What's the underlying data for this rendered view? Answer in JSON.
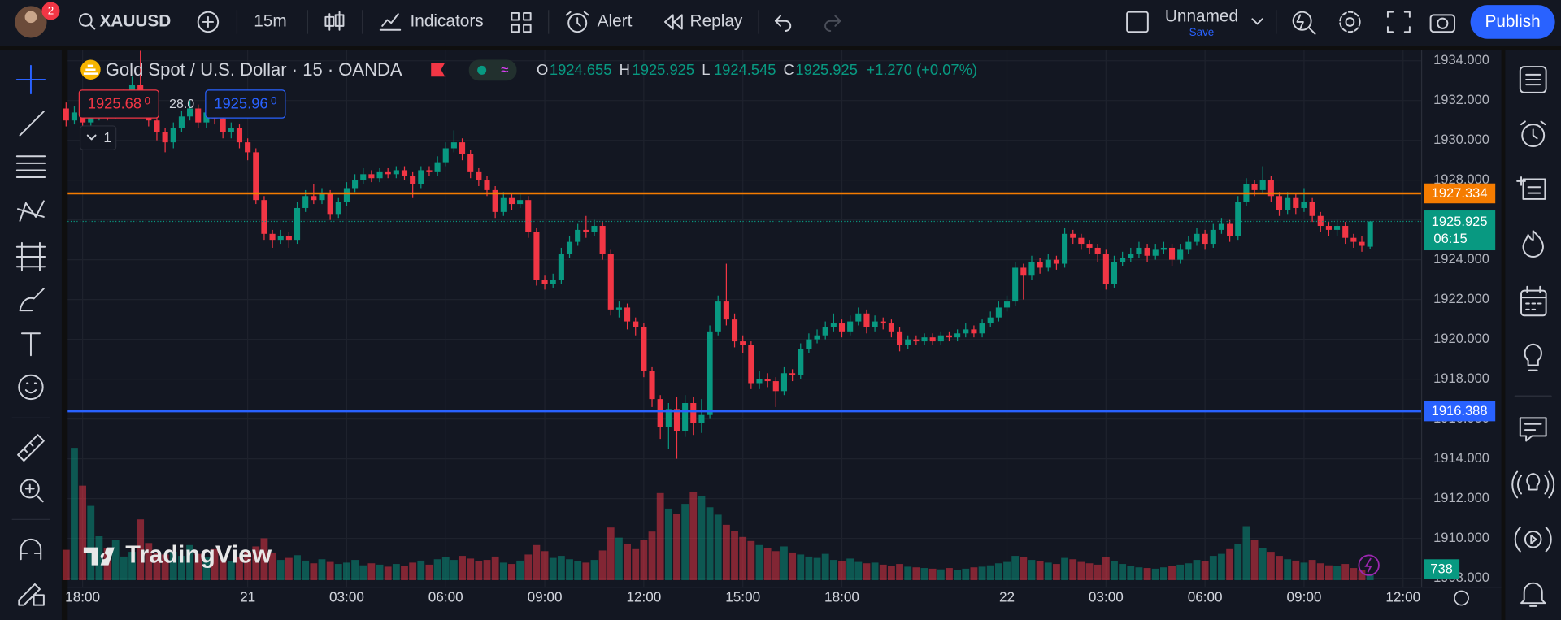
{
  "toolbar": {
    "badge": "2",
    "symbol": "XAUUSD",
    "interval": "15m",
    "indicators": "Indicators",
    "alert": "Alert",
    "replay": "Replay",
    "layout_name": "Unnamed",
    "save": "Save",
    "publish": "Publish"
  },
  "legend": {
    "title": "Gold Spot / U.S. Dollar · 15 · OANDA",
    "open_label": "O",
    "high_label": "H",
    "low_label": "L",
    "close_label": "C",
    "change": "+1.270 (+0.07%)",
    "sell": "1925.68",
    "sell_pip": "0",
    "spread": "28.0",
    "buy": "1925.96",
    "buy_pip": "0",
    "indicator_count": "1"
  },
  "watermark": "TradingView",
  "chart_data": {
    "type": "candlestick",
    "categories": [
      null,
      null,
      "18:00",
      null,
      null,
      null,
      null,
      null,
      null,
      null,
      null,
      null,
      null,
      null,
      null,
      null,
      null,
      null,
      null,
      null,
      null,
      null,
      "21",
      null,
      null,
      null,
      null,
      null,
      null,
      null,
      null,
      null,
      null,
      null,
      "03:00",
      null,
      null,
      null,
      null,
      null,
      null,
      null,
      null,
      null,
      null,
      null,
      "06:00",
      null,
      null,
      null,
      null,
      null,
      null,
      null,
      null,
      null,
      null,
      null,
      "09:00",
      null,
      null,
      null,
      null,
      null,
      null,
      null,
      null,
      null,
      null,
      null,
      "12:00",
      null,
      null,
      null,
      null,
      null,
      null,
      null,
      null,
      null,
      null,
      null,
      "15:00",
      null,
      null,
      null,
      null,
      null,
      null,
      null,
      null,
      null,
      null,
      null,
      "18:00",
      null,
      null,
      null,
      null,
      null,
      null,
      null,
      null,
      null,
      null,
      null,
      null,
      null,
      null,
      null,
      null,
      null,
      null,
      null,
      "22",
      null,
      null,
      null,
      null,
      null,
      null,
      null,
      null,
      null,
      null,
      null,
      "03:00",
      null,
      null,
      null,
      null,
      null,
      null,
      null,
      null,
      null,
      null,
      null,
      "06:00",
      null,
      null,
      null,
      null,
      null,
      null,
      null,
      null,
      null,
      null,
      null,
      "09:00",
      null,
      null,
      null,
      null,
      null,
      null,
      null,
      null,
      null,
      null,
      null,
      "12:00",
      null
    ],
    "open": [
      1931.6,
      1931.0,
      1931.4,
      1930.9,
      1931.2,
      1931.6,
      1931.3,
      1931.8,
      1932.2,
      1932.8,
      1932.0,
      1931.0,
      1930.4,
      1929.9,
      1930.6,
      1931.2,
      1931.6,
      1930.9,
      1931.4,
      1931.1,
      1930.4,
      1930.6,
      1929.9,
      1929.4,
      1927.0,
      1925.3,
      1925.0,
      1925.2,
      1925.0,
      1926.6,
      1927.2,
      1927.0,
      1927.3,
      1926.3,
      1926.9,
      1927.6,
      1928.0,
      1928.3,
      1928.1,
      1928.4,
      1928.3,
      1928.5,
      1928.2,
      1927.8,
      1928.5,
      1928.4,
      1928.9,
      1929.6,
      1929.9,
      1929.3,
      1928.4,
      1928.0,
      1927.5,
      1926.4,
      1927.1,
      1926.8,
      1927.0,
      1925.4,
      1923.0,
      1922.8,
      1923.0,
      1924.3,
      1924.9,
      1925.5,
      1925.4,
      1925.7,
      1924.3,
      1921.5,
      1921.6,
      1920.9,
      1920.6,
      1918.4,
      1917.0,
      1915.6,
      1916.5,
      1915.4,
      1916.8,
      1915.8,
      1916.2,
      1920.4,
      1921.9,
      1921.0,
      1919.9,
      1919.7,
      1917.8,
      1918.0,
      1917.9,
      1917.4,
      1918.3,
      1918.2,
      1919.5,
      1920.0,
      1920.2,
      1920.6,
      1920.8,
      1920.4,
      1920.9,
      1921.3,
      1920.6,
      1920.9,
      1920.8,
      1920.4,
      1919.7,
      1920.0,
      1919.9,
      1920.1,
      1919.9,
      1920.2,
      1920.1,
      1920.3,
      1920.5,
      1920.3,
      1920.8,
      1921.1,
      1921.6,
      1921.9,
      1923.6,
      1923.2,
      1923.9,
      1923.6,
      1924.0,
      1923.8,
      1925.3,
      1925.1,
      1924.8,
      1924.6,
      1924.3,
      1922.8,
      1923.9,
      1924.1,
      1924.3,
      1924.6,
      1924.2,
      1924.5,
      1924.6,
      1924.0,
      1924.5,
      1924.9,
      1925.3,
      1924.8,
      1925.5,
      1925.8,
      1925.2,
      1926.9,
      1927.8,
      1927.5,
      1928.0,
      1927.2,
      1926.5,
      1927.1,
      1926.6,
      1926.9,
      1926.2,
      1925.7,
      1925.5,
      1925.7,
      1925.1,
      1924.9,
      1924.655,
      null,
      null,
      null,
      null,
      null
    ],
    "high": [
      1931.9,
      1931.7,
      1931.6,
      1931.5,
      1931.9,
      1931.8,
      1932.1,
      1932.6,
      1933.2,
      1934.5,
      1932.2,
      1931.2,
      1930.6,
      1930.9,
      1931.5,
      1932.0,
      1931.8,
      1931.7,
      1931.7,
      1931.3,
      1930.9,
      1930.8,
      1930.1,
      1929.6,
      1927.2,
      1925.5,
      1925.5,
      1925.4,
      1926.9,
      1927.5,
      1927.8,
      1927.6,
      1927.5,
      1927.1,
      1927.9,
      1928.3,
      1928.6,
      1928.5,
      1928.6,
      1928.6,
      1928.7,
      1928.7,
      1928.4,
      1928.7,
      1928.7,
      1929.2,
      1929.9,
      1930.5,
      1930.1,
      1929.5,
      1928.6,
      1928.2,
      1927.7,
      1927.4,
      1927.3,
      1927.3,
      1927.2,
      1925.6,
      1923.2,
      1923.3,
      1924.6,
      1925.2,
      1925.8,
      1926.2,
      1926.0,
      1925.9,
      1924.5,
      1921.9,
      1921.8,
      1921.1,
      1920.8,
      1918.6,
      1917.2,
      1916.8,
      1917.1,
      1917.2,
      1917.1,
      1917.0,
      1920.7,
      1922.2,
      1923.8,
      1921.3,
      1920.2,
      1919.9,
      1918.4,
      1918.3,
      1918.1,
      1918.6,
      1918.5,
      1919.8,
      1920.3,
      1920.5,
      1920.9,
      1921.3,
      1921.0,
      1921.2,
      1921.6,
      1921.5,
      1921.2,
      1921.1,
      1921.0,
      1920.6,
      1920.2,
      1920.2,
      1920.3,
      1920.3,
      1920.4,
      1920.4,
      1920.5,
      1920.8,
      1920.7,
      1921.0,
      1921.4,
      1921.9,
      1922.2,
      1923.9,
      1923.8,
      1924.2,
      1924.1,
      1924.3,
      1924.2,
      1925.6,
      1925.5,
      1925.3,
      1925.0,
      1924.8,
      1924.5,
      1924.2,
      1924.4,
      1924.6,
      1924.9,
      1924.8,
      1924.8,
      1924.9,
      1924.8,
      1924.8,
      1925.2,
      1925.6,
      1925.5,
      1925.8,
      1926.1,
      1926.0,
      1927.2,
      1928.1,
      1928.0,
      1928.7,
      1928.2,
      1927.4,
      1927.4,
      1927.3,
      1927.6,
      1927.1,
      1926.4,
      1925.9,
      1926.0,
      1925.9,
      1925.3,
      1925.2,
      1925.925,
      null,
      null,
      null,
      null,
      null
    ],
    "low": [
      1930.7,
      1930.8,
      1930.6,
      1930.7,
      1931.0,
      1931.0,
      1931.1,
      1931.6,
      1932.0,
      1931.8,
      1930.7,
      1930.0,
      1929.4,
      1929.6,
      1930.4,
      1931.0,
      1930.6,
      1930.6,
      1930.8,
      1930.1,
      1930.1,
      1929.6,
      1929.0,
      1926.8,
      1925.0,
      1924.6,
      1924.8,
      1924.6,
      1924.8,
      1926.4,
      1926.8,
      1926.8,
      1926.0,
      1926.1,
      1926.7,
      1927.4,
      1927.8,
      1927.9,
      1927.9,
      1928.1,
      1928.1,
      1928.0,
      1927.1,
      1927.6,
      1928.2,
      1928.2,
      1928.7,
      1929.4,
      1929.0,
      1928.1,
      1927.7,
      1927.2,
      1926.1,
      1926.2,
      1926.5,
      1926.6,
      1925.1,
      1922.7,
      1922.5,
      1922.6,
      1922.8,
      1924.1,
      1924.7,
      1925.1,
      1925.2,
      1924.0,
      1921.2,
      1921.1,
      1920.5,
      1920.2,
      1918.1,
      1916.6,
      1915.0,
      1914.5,
      1914.0,
      1915.1,
      1915.2,
      1915.3,
      1916.0,
      1920.2,
      1920.7,
      1919.6,
      1919.3,
      1917.5,
      1917.5,
      1917.6,
      1916.6,
      1917.2,
      1917.9,
      1918.0,
      1919.3,
      1919.8,
      1920.0,
      1920.4,
      1920.1,
      1920.2,
      1920.7,
      1920.3,
      1920.4,
      1920.5,
      1920.1,
      1919.4,
      1919.5,
      1919.7,
      1919.7,
      1919.7,
      1919.7,
      1919.9,
      1919.9,
      1920.1,
      1920.1,
      1920.1,
      1920.6,
      1920.9,
      1921.4,
      1921.7,
      1922.0,
      1923.0,
      1923.3,
      1923.4,
      1923.5,
      1923.6,
      1924.8,
      1924.5,
      1924.3,
      1923.9,
      1922.5,
      1922.6,
      1923.7,
      1923.9,
      1924.1,
      1923.9,
      1924.0,
      1924.3,
      1923.7,
      1923.8,
      1924.3,
      1924.7,
      1924.5,
      1924.6,
      1925.3,
      1924.9,
      1925.0,
      1926.7,
      1927.2,
      1927.3,
      1926.9,
      1926.2,
      1926.3,
      1926.3,
      1926.4,
      1925.9,
      1925.4,
      1925.2,
      1925.2,
      1924.8,
      1924.6,
      1924.4,
      1924.545,
      null,
      null,
      null,
      null,
      null
    ],
    "close": [
      1931.0,
      1931.4,
      1930.9,
      1931.2,
      1931.6,
      1931.3,
      1931.8,
      1932.2,
      1932.8,
      1932.0,
      1931.0,
      1930.4,
      1929.9,
      1930.6,
      1931.2,
      1931.6,
      1930.9,
      1931.4,
      1931.1,
      1930.4,
      1930.6,
      1929.9,
      1929.4,
      1927.0,
      1925.3,
      1925.0,
      1925.2,
      1925.0,
      1926.6,
      1927.2,
      1927.0,
      1927.3,
      1926.3,
      1926.9,
      1927.6,
      1928.0,
      1928.3,
      1928.1,
      1928.4,
      1928.3,
      1928.5,
      1928.2,
      1927.8,
      1928.5,
      1928.4,
      1928.9,
      1929.6,
      1929.9,
      1929.3,
      1928.4,
      1928.0,
      1927.5,
      1926.4,
      1927.1,
      1926.8,
      1927.0,
      1925.4,
      1923.0,
      1922.8,
      1923.0,
      1924.3,
      1924.9,
      1925.5,
      1925.4,
      1925.7,
      1924.3,
      1921.5,
      1921.6,
      1920.9,
      1920.6,
      1918.4,
      1917.0,
      1915.6,
      1916.5,
      1915.4,
      1916.8,
      1915.8,
      1916.2,
      1920.4,
      1921.9,
      1921.0,
      1919.9,
      1919.7,
      1917.8,
      1918.0,
      1917.9,
      1917.4,
      1918.3,
      1918.2,
      1919.5,
      1920.0,
      1920.2,
      1920.6,
      1920.8,
      1920.4,
      1920.9,
      1921.3,
      1920.6,
      1920.9,
      1920.8,
      1920.4,
      1919.7,
      1920.0,
      1919.9,
      1920.1,
      1919.9,
      1920.2,
      1920.1,
      1920.3,
      1920.5,
      1920.3,
      1920.8,
      1921.1,
      1921.6,
      1921.9,
      1923.6,
      1923.2,
      1923.9,
      1923.6,
      1924.0,
      1923.8,
      1925.3,
      1925.1,
      1924.8,
      1924.6,
      1924.3,
      1922.8,
      1923.9,
      1924.1,
      1924.3,
      1924.6,
      1924.2,
      1924.5,
      1924.6,
      1924.0,
      1924.5,
      1924.9,
      1925.3,
      1924.8,
      1925.5,
      1925.8,
      1925.2,
      1926.9,
      1927.8,
      1927.5,
      1928.0,
      1927.2,
      1926.5,
      1927.1,
      1926.6,
      1926.9,
      1926.2,
      1925.7,
      1925.5,
      1925.7,
      1925.1,
      1924.9,
      1924.7,
      1925.925,
      null,
      null,
      null,
      null,
      null
    ],
    "volume": [
      4500,
      19600,
      14000,
      11000,
      6500,
      4800,
      6000,
      3500,
      4200,
      9000,
      5500,
      4000,
      3800,
      4200,
      3600,
      5200,
      3900,
      3400,
      4600,
      3100,
      2800,
      3500,
      4200,
      5000,
      6200,
      4100,
      3000,
      3300,
      3700,
      2900,
      2500,
      3100,
      2700,
      2400,
      2600,
      3000,
      2200,
      2500,
      2300,
      2000,
      2400,
      2100,
      2600,
      2900,
      2300,
      3100,
      3400,
      3000,
      3600,
      3200,
      2800,
      3000,
      3500,
      2600,
      2400,
      2900,
      3800,
      5200,
      4300,
      3300,
      3600,
      3100,
      2800,
      2600,
      3000,
      4400,
      7800,
      6300,
      5400,
      4600,
      5900,
      7200,
      12900,
      10600,
      9800,
      11300,
      13100,
      12500,
      10800,
      9700,
      8200,
      7300,
      6400,
      5800,
      5200,
      4700,
      4300,
      5000,
      4100,
      3800,
      3500,
      3300,
      3900,
      3000,
      2800,
      3200,
      2700,
      2500,
      2600,
      2300,
      2100,
      2400,
      2000,
      1900,
      1800,
      1700,
      1600,
      1800,
      1500,
      1700,
      1900,
      2000,
      2200,
      2500,
      2700,
      3600,
      3400,
      3000,
      2800,
      2600,
      2400,
      3300,
      3100,
      2700,
      2500,
      2300,
      3400,
      2800,
      2400,
      2100,
      1900,
      1800,
      1700,
      1900,
      2100,
      2300,
      2500,
      3000,
      2800,
      3600,
      3900,
      4600,
      5300,
      8000,
      5900,
      4800,
      4200,
      3600,
      3100,
      2900,
      2600,
      3000,
      2500,
      2200,
      2100,
      2400,
      1800,
      1500,
      738,
      null,
      null,
      null,
      null,
      null
    ],
    "up_color": "#089981",
    "down_color": "#f23645",
    "ylim": [
      1907.55,
      1934.55
    ],
    "yticks": [
      {
        "value": 1908,
        "label": "1908.000"
      },
      {
        "value": 1910,
        "label": "1910.000"
      },
      {
        "value": 1912,
        "label": "1912.000"
      },
      {
        "value": 1914,
        "label": "1914.000"
      },
      {
        "value": 1916,
        "label": "1916.000"
      },
      {
        "value": 1918,
        "label": "1918.000"
      },
      {
        "value": 1920,
        "label": "1920.000"
      },
      {
        "value": 1922,
        "label": "1922.000"
      },
      {
        "value": 1924,
        "label": "1924.000"
      },
      {
        "value": 1926,
        "label": "1926.000"
      },
      {
        "value": 1928,
        "label": "1928.000"
      },
      {
        "value": 1930,
        "label": "1930.000"
      },
      {
        "value": 1932,
        "label": "1932.000"
      },
      {
        "value": 1934,
        "label": "1934.000"
      }
    ],
    "grid": true,
    "hlines": [
      {
        "value": 1927.334,
        "color": "#f57c00"
      },
      {
        "value": 1916.388,
        "color": "#2962ff"
      }
    ],
    "countdown": "06:15"
  }
}
